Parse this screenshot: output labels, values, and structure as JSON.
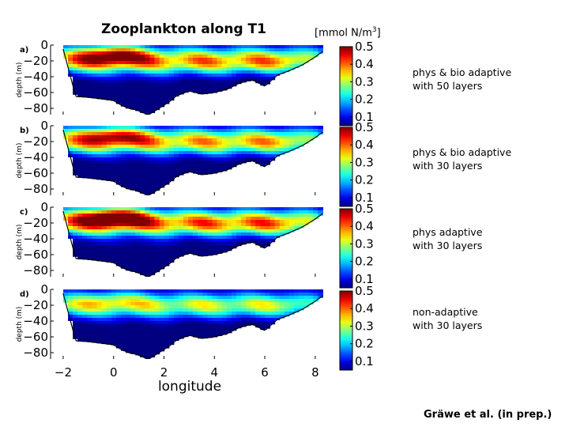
{
  "title": "Zooplankton along T1",
  "units": {
    "base": "[mmol N/m",
    "sup": "3",
    "close": "]"
  },
  "credit": "Gräwe et al. (in prep.)",
  "colors": {
    "background": "#ffffff",
    "text": "#000000"
  },
  "chart_data": {
    "type": "heatmap",
    "xlabel": "longitude",
    "ylabel": "depth (m)",
    "xlim": [
      -2.5,
      8.6
    ],
    "ylim": [
      -88,
      0
    ],
    "xticks": [
      "−2",
      "0",
      "2",
      "4",
      "6",
      "8"
    ],
    "xtick_values": [
      -2,
      0,
      2,
      4,
      6,
      8
    ],
    "yticks": [
      "0",
      "−20",
      "−40",
      "−60",
      "−80"
    ],
    "ytick_values": [
      0,
      -20,
      -40,
      -60,
      -80
    ],
    "colorbar": {
      "min": 0.05,
      "max": 0.5,
      "ticks": [
        "0.5",
        "0.4",
        "0.3",
        "0.2",
        "0.1"
      ],
      "tick_values": [
        0.5,
        0.4,
        0.3,
        0.2,
        0.1
      ],
      "colormap": "jet"
    },
    "bathymetry": {
      "lon": [
        -2.0,
        -1.5,
        -1.0,
        -0.5,
        0.0,
        0.3,
        0.6,
        0.9,
        1.2,
        1.4,
        1.6,
        1.9,
        2.2,
        2.5,
        3.0,
        3.5,
        4.0,
        4.5,
        5.0,
        5.5,
        6.0,
        6.5,
        7.0,
        7.5,
        8.0,
        8.3
      ],
      "depth": [
        -5,
        -65,
        -66,
        -68,
        -70,
        -76,
        -80,
        -82,
        -86,
        -88,
        -84,
        -78,
        -72,
        -64,
        -58,
        -62,
        -60,
        -56,
        -48,
        -44,
        -52,
        -38,
        -32,
        -25,
        -15,
        -8
      ]
    },
    "panels": [
      {
        "label": "a)",
        "description": [
          "phys & bio adaptive",
          "with 50 layers"
        ],
        "peak": 0.46,
        "intensity": 1.0
      },
      {
        "label": "b)",
        "description": [
          "phys & bio adaptive",
          "with 30 layers"
        ],
        "peak": 0.44,
        "intensity": 0.95
      },
      {
        "label": "c)",
        "description": [
          "phys adaptive",
          "with 30 layers"
        ],
        "peak": 0.48,
        "intensity": 1.05
      },
      {
        "label": "d)",
        "description": [
          "non-adaptive",
          "with 30 layers"
        ],
        "peak": 0.36,
        "intensity": 0.8
      }
    ]
  }
}
